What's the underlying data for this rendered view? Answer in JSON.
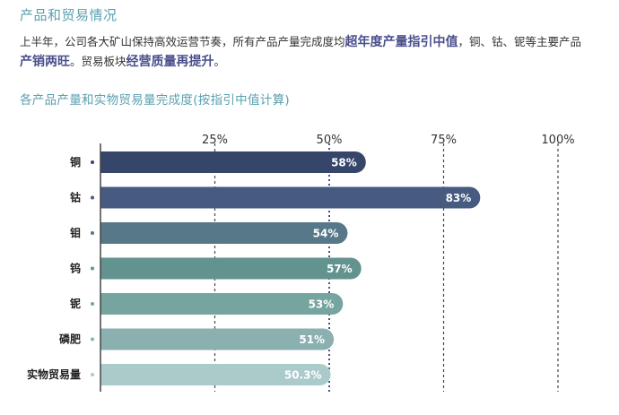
{
  "section_title": "产品和贸易情况",
  "summary": {
    "p1": "上半年，公司各大矿山保持高效运营节奏，所有产品产量完成度均",
    "h1": "超年度产量指引中值",
    "p2": "，铜、钴、铌等主要产品",
    "h2": "产销两旺",
    "p3": "。贸易板块",
    "h3": "经营质量再提升",
    "p4": "。"
  },
  "chart_data": {
    "type": "bar",
    "orientation": "horizontal",
    "title": "各产品产量和实物贸易量完成度(按指引中值计算)",
    "categories": [
      "铜",
      "钴",
      "钼",
      "钨",
      "铌",
      "磷肥",
      "实物贸易量"
    ],
    "values": [
      58,
      83,
      54,
      57,
      53,
      51,
      50.3
    ],
    "value_labels": [
      "58%",
      "83%",
      "54%",
      "57%",
      "53%",
      "51%",
      "50.3%"
    ],
    "unit": "%",
    "xlim": [
      0,
      100
    ],
    "ticks": [
      25,
      50,
      75,
      100
    ],
    "tick_labels": [
      "25%",
      "50%",
      "75%",
      "100%"
    ],
    "grid": "dashed vertical",
    "highlight_line": 50,
    "bar_colors": [
      "#36466a",
      "#475a80",
      "#567888",
      "#62938e",
      "#76a5a0",
      "#8ab1b0",
      "#abcbcb"
    ],
    "legend": "none",
    "colors": {
      "title": "#5aa0b0",
      "highlight": "#4a4f8c",
      "grid": "#444444",
      "mid_line": "#4a4f8c"
    }
  }
}
